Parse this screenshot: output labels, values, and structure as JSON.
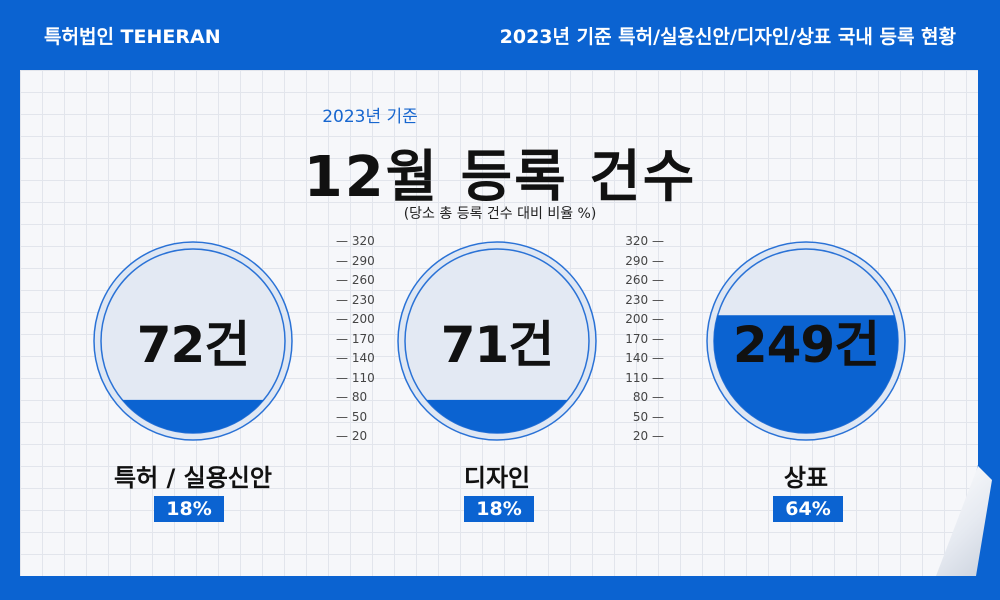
{
  "header": {
    "brand": "특허법인 TEHERAN",
    "title": "2023년 기준 특허/실용신안/디자인/상표 국내 등록 현황"
  },
  "subtitle": "2023년 기준",
  "main_title": "12월 등록 건수",
  "note": "(당소 총 등록 건수 대비 비율 %)",
  "colors": {
    "accent": "#0b63d1",
    "fill": "#0b63d1",
    "empty": "#e3e9f3"
  },
  "chart_data": {
    "type": "gauge",
    "scale_ticks": [
      320,
      290,
      260,
      230,
      200,
      170,
      140,
      110,
      80,
      50,
      20
    ],
    "items": [
      {
        "category": "특허 / 실용신안",
        "count": 72,
        "count_label": "72건",
        "percent": 18,
        "percent_label": "18%"
      },
      {
        "category": "디자인",
        "count": 71,
        "count_label": "71건",
        "percent": 18,
        "percent_label": "18%"
      },
      {
        "category": "상표",
        "count": 249,
        "count_label": "249건",
        "percent": 64,
        "percent_label": "64%"
      }
    ]
  }
}
